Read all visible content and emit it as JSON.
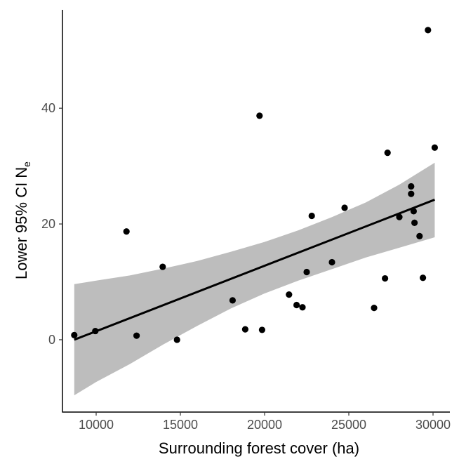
{
  "chart_data": {
    "type": "scatter",
    "xlabel": "Surrounding forest cover (ha)",
    "ylabel": {
      "main": "Lower 95% CI N",
      "subscript": "e"
    },
    "xlim": [
      8000,
      31000
    ],
    "ylim": [
      -12.5,
      57
    ],
    "x_ticks": [
      10000,
      15000,
      20000,
      25000,
      30000
    ],
    "y_ticks": [
      0,
      20,
      40
    ],
    "x_tick_labels": [
      "10000",
      "15000",
      "20000",
      "25000",
      "30000"
    ],
    "y_tick_labels": [
      "0",
      "20",
      "40"
    ],
    "grid": false,
    "points": [
      {
        "x": 8700,
        "y": 0.8
      },
      {
        "x": 9950,
        "y": 1.5
      },
      {
        "x": 11800,
        "y": 18.7
      },
      {
        "x": 12400,
        "y": 0.7
      },
      {
        "x": 13950,
        "y": 12.6
      },
      {
        "x": 14800,
        "y": 0.0
      },
      {
        "x": 18100,
        "y": 6.8
      },
      {
        "x": 18850,
        "y": 1.8
      },
      {
        "x": 19700,
        "y": 38.7
      },
      {
        "x": 19850,
        "y": 1.7
      },
      {
        "x": 21450,
        "y": 7.8
      },
      {
        "x": 21900,
        "y": 6.0
      },
      {
        "x": 22250,
        "y": 5.6
      },
      {
        "x": 22500,
        "y": 11.7
      },
      {
        "x": 22800,
        "y": 21.4
      },
      {
        "x": 24000,
        "y": 13.4
      },
      {
        "x": 24750,
        "y": 22.8
      },
      {
        "x": 26500,
        "y": 5.5
      },
      {
        "x": 27150,
        "y": 10.6
      },
      {
        "x": 27300,
        "y": 32.3
      },
      {
        "x": 28000,
        "y": 21.2
      },
      {
        "x": 28700,
        "y": 26.5
      },
      {
        "x": 28700,
        "y": 25.2
      },
      {
        "x": 28850,
        "y": 22.2
      },
      {
        "x": 28900,
        "y": 20.2
      },
      {
        "x": 29200,
        "y": 17.9
      },
      {
        "x": 29400,
        "y": 10.7
      },
      {
        "x": 29700,
        "y": 53.5
      },
      {
        "x": 30100,
        "y": 33.2
      }
    ],
    "trend": {
      "x": [
        8700,
        30100
      ],
      "y": [
        0.0,
        24.2
      ]
    },
    "confidence_band": {
      "x": [
        8700,
        10000,
        12000,
        14000,
        16000,
        18000,
        20000,
        22000,
        24000,
        26000,
        28000,
        30100
      ],
      "upper": [
        9.6,
        10.2,
        11.1,
        12.3,
        13.6,
        15.2,
        16.9,
        18.9,
        21.2,
        23.7,
        26.8,
        30.6
      ],
      "lower": [
        -9.6,
        -7.3,
        -4.2,
        -0.8,
        2.4,
        5.4,
        8.0,
        10.2,
        12.2,
        14.2,
        15.9,
        17.7
      ]
    },
    "colors": {
      "points": "#000000",
      "trend": "#000000",
      "band": "#bdbdbd",
      "axis": "#000000",
      "tick_text": "#4d4d4d"
    }
  }
}
